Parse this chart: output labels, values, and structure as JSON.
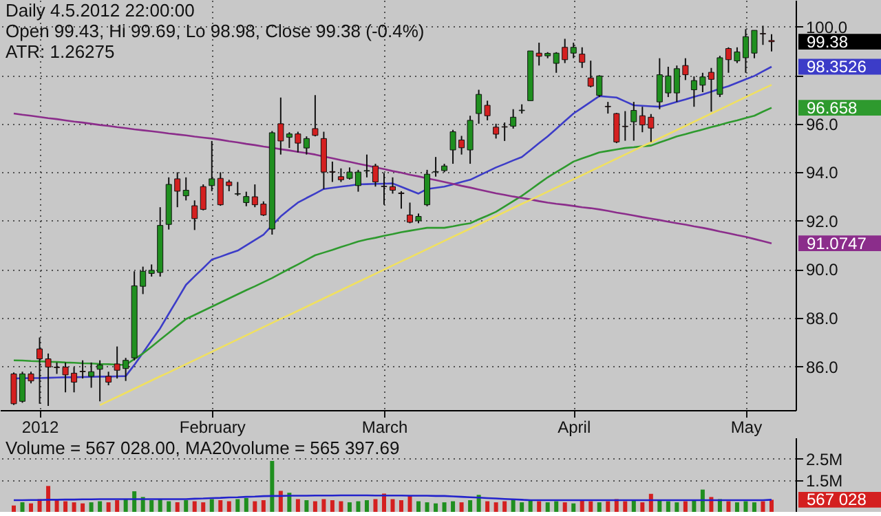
{
  "chart_data": [
    {
      "type": "candlestick",
      "title": "Daily 4.5.2012 22:00:00",
      "subtitle": "Open 99.43, Hi 99.69, Lo 98.98, Close 99.38 (-0.4%)\nATR: 1.26275",
      "annotations": [
        "99.38",
        "98.3526",
        "96.658",
        "91.0747"
      ],
      "categories": [
        null,
        null,
        null,
        "2012",
        null,
        null,
        null,
        null,
        null,
        null,
        null,
        null,
        null,
        null,
        null,
        null,
        null,
        null,
        null,
        null,
        null,
        null,
        null,
        "February",
        null,
        null,
        null,
        null,
        null,
        null,
        null,
        null,
        null,
        null,
        null,
        null,
        null,
        null,
        null,
        null,
        null,
        null,
        null,
        "March",
        null,
        null,
        null,
        null,
        null,
        null,
        null,
        null,
        null,
        null,
        null,
        null,
        null,
        null,
        null,
        null,
        null,
        null,
        null,
        null,
        null,
        "April",
        null,
        null,
        null,
        null,
        null,
        null,
        null,
        null,
        null,
        null,
        null,
        null,
        null,
        null,
        null,
        null,
        null,
        null,
        null,
        "May",
        null,
        null,
        null
      ],
      "ohlc": [
        [
          85.69,
          85.75,
          84.41,
          84.46
        ],
        [
          84.56,
          85.78,
          84.5,
          85.69
        ],
        [
          85.69,
          85.78,
          85.3,
          85.4
        ],
        [
          86.72,
          87.19,
          84.46,
          86.31
        ],
        [
          86.31,
          86.53,
          84.37,
          85.97
        ],
        [
          85.97,
          86.16,
          85.69,
          85.95
        ],
        [
          85.97,
          86.16,
          84.93,
          85.65
        ],
        [
          85.72,
          85.97,
          84.93,
          85.35
        ],
        [
          85.8,
          86.25,
          85.5,
          85.78
        ],
        [
          85.59,
          86.16,
          85.12,
          85.78
        ],
        [
          85.88,
          86.25,
          84.56,
          86.06
        ],
        [
          85.59,
          85.78,
          85.22,
          85.35
        ],
        [
          86.1,
          86.82,
          85.5,
          85.84
        ],
        [
          85.91,
          86.35,
          85.4,
          86.25
        ],
        [
          86.35,
          89.92,
          86.25,
          89.32
        ],
        [
          89.3,
          90.11,
          88.98,
          89.92
        ],
        [
          89.83,
          90.2,
          89.7,
          89.96
        ],
        [
          89.87,
          92.56,
          89.7,
          91.81
        ],
        [
          91.85,
          93.79,
          91.64,
          93.5
        ],
        [
          93.73,
          94.0,
          92.56,
          93.22
        ],
        [
          93.03,
          93.79,
          92.84,
          93.26
        ],
        [
          92.62,
          92.84,
          91.62,
          92.09
        ],
        [
          93.41,
          93.5,
          92.43,
          92.47
        ],
        [
          93.45,
          95.29,
          93.22,
          93.73
        ],
        [
          93.75,
          94.0,
          92.62,
          92.66
        ],
        [
          93.6,
          93.69,
          93.22,
          93.45
        ],
        [
          93.1,
          93.6,
          93.03,
          93.12
        ],
        [
          92.75,
          93.2,
          92.6,
          93.0
        ],
        [
          92.99,
          93.5,
          92.56,
          92.66
        ],
        [
          92.69,
          92.8,
          92.2,
          92.24
        ],
        [
          91.66,
          95.7,
          91.43,
          95.63
        ],
        [
          96.0,
          97.08,
          94.73,
          95.29
        ],
        [
          95.44,
          95.65,
          95.0,
          95.58
        ],
        [
          95.58,
          95.67,
          94.82,
          95.2
        ],
        [
          95.0,
          95.48,
          94.73,
          95.39
        ],
        [
          95.8,
          97.18,
          95.48,
          95.52
        ],
        [
          95.39,
          95.67,
          93.31,
          94.01
        ],
        [
          94.03,
          94.44,
          93.6,
          94.0
        ],
        [
          93.82,
          94.16,
          93.6,
          93.69
        ],
        [
          93.75,
          94.2,
          93.7,
          94.01
        ],
        [
          93.45,
          94.1,
          93.2,
          94.01
        ],
        [
          94.05,
          94.73,
          93.79,
          94.07
        ],
        [
          94.26,
          94.35,
          93.41,
          93.6
        ],
        [
          93.43,
          93.97,
          92.66,
          93.41
        ],
        [
          93.41,
          93.79,
          93.12,
          93.26
        ],
        [
          93.15,
          93.22,
          92.5,
          93.12
        ],
        [
          92.24,
          92.75,
          91.9,
          91.94
        ],
        [
          92.0,
          92.3,
          91.9,
          92.18
        ],
        [
          92.66,
          94.1,
          92.6,
          93.92
        ],
        [
          94.01,
          94.63,
          93.82,
          94.03
        ],
        [
          94.07,
          94.35,
          94.0,
          94.26
        ],
        [
          94.92,
          95.75,
          94.35,
          95.67
        ],
        [
          95.33,
          95.5,
          94.73,
          95.01
        ],
        [
          94.92,
          96.33,
          94.35,
          96.14
        ],
        [
          96.42,
          97.4,
          96.0,
          97.21
        ],
        [
          96.76,
          96.95,
          96.14,
          96.33
        ],
        [
          95.86,
          96.0,
          95.39,
          95.57
        ],
        [
          95.88,
          96.05,
          95.29,
          95.86
        ],
        [
          95.9,
          96.6,
          95.8,
          96.27
        ],
        [
          96.54,
          96.8,
          96.42,
          96.56
        ],
        [
          96.95,
          99.0,
          96.95,
          99.0
        ],
        [
          98.91,
          99.34,
          98.4,
          98.78
        ],
        [
          98.8,
          98.95,
          98.7,
          98.9
        ],
        [
          98.49,
          98.95,
          98.1,
          98.91
        ],
        [
          99.15,
          99.5,
          98.5,
          98.64
        ],
        [
          98.91,
          99.34,
          98.7,
          99.15
        ],
        [
          98.87,
          99.15,
          98.3,
          98.53
        ],
        [
          97.89,
          98.6,
          97.5,
          97.55
        ],
        [
          97.17,
          98.0,
          97.1,
          97.97
        ],
        [
          96.72,
          96.9,
          96.42,
          96.7
        ],
        [
          96.42,
          96.45,
          95.2,
          95.25
        ],
        [
          95.9,
          96.52,
          95.3,
          95.88
        ],
        [
          96.08,
          96.9,
          95.3,
          96.55
        ],
        [
          96.33,
          96.7,
          95.65,
          95.95
        ],
        [
          96.27,
          96.4,
          95.25,
          95.82
        ],
        [
          96.9,
          98.7,
          96.6,
          98.02
        ],
        [
          97.27,
          98.35,
          97.1,
          97.97
        ],
        [
          97.27,
          98.4,
          96.9,
          98.27
        ],
        [
          98.4,
          98.7,
          97.8,
          98.02
        ],
        [
          97.4,
          97.95,
          96.7,
          97.78
        ],
        [
          97.59,
          98.1,
          97.3,
          97.93
        ],
        [
          98.12,
          98.3,
          96.5,
          97.83
        ],
        [
          97.21,
          98.8,
          97.1,
          98.72
        ],
        [
          99.1,
          99.15,
          98.1,
          98.64
        ],
        [
          98.59,
          99.15,
          98.5,
          98.96
        ],
        [
          98.72,
          99.9,
          98.1,
          99.59
        ],
        [
          98.91,
          99.85,
          98.7,
          99.85
        ],
        [
          99.72,
          100.04,
          99.25,
          99.7
        ],
        [
          99.43,
          99.69,
          98.98,
          99.38
        ]
      ],
      "colors": [
        "#d42020",
        "#1f8f1f",
        "#d42020",
        "#d42020",
        "#d42020",
        "#d42020",
        "#d42020",
        "#d42020",
        "#d42020",
        "#1f8f1f",
        "#1f8f1f",
        "#d42020",
        "#d42020",
        "#1f8f1f",
        "#1f8f1f",
        "#1f8f1f",
        "#1f8f1f",
        "#1f8f1f",
        "#1f8f1f",
        "#d42020",
        "#1f8f1f",
        "#d42020",
        "#d42020",
        "#1f8f1f",
        "#d42020",
        "#d42020",
        "#1f8f1f",
        "#1f8f1f",
        "#d42020",
        "#d42020",
        "#1f8f1f",
        "#d42020",
        "#1f8f1f",
        "#d42020",
        "#1f8f1f",
        "#d42020",
        "#d42020",
        "#d42020",
        "#d42020",
        "#1f8f1f",
        "#1f8f1f",
        "#1f8f1f",
        "#d42020",
        "#d42020",
        "#d42020",
        "#d42020",
        "#d42020",
        "#1f8f1f",
        "#1f8f1f",
        "#1f8f1f",
        "#1f8f1f",
        "#1f8f1f",
        "#d42020",
        "#1f8f1f",
        "#1f8f1f",
        "#d42020",
        "#d42020",
        "#d42020",
        "#1f8f1f",
        "#1f8f1f",
        "#1f8f1f",
        "#d42020",
        "#1f8f1f",
        "#1f8f1f",
        "#d42020",
        "#1f8f1f",
        "#d42020",
        "#d42020",
        "#1f8f1f",
        "#d42020",
        "#d42020",
        "#d42020",
        "#1f8f1f",
        "#d42020",
        "#d42020",
        "#1f8f1f",
        "#1f8f1f",
        "#1f8f1f",
        "#d42020",
        "#1f8f1f",
        "#1f8f1f",
        "#d42020",
        "#1f8f1f",
        "#d42020",
        "#1f8f1f",
        "#1f8f1f",
        "#1f8f1f",
        "#d42020",
        "#d42020"
      ],
      "series": [
        {
          "type": "line",
          "color": "#3c3cc8",
          "values": [
            85.5,
            85.51,
            85.52,
            85.52,
            85.53,
            85.54,
            85.55,
            85.55,
            85.56,
            85.57,
            85.58,
            85.58,
            85.59,
            85.6,
            86.06,
            86.56,
            87.07,
            87.57,
            88.17,
            88.76,
            89.36,
            89.71,
            90.05,
            90.4,
            90.52,
            90.65,
            90.77,
            90.99,
            91.21,
            91.43,
            91.81,
            92.18,
            92.47,
            92.75,
            92.94,
            93.12,
            93.31,
            93.36,
            93.41,
            93.45,
            93.5,
            93.51,
            93.52,
            93.53,
            93.54,
            93.4,
            93.26,
            93.12,
            93.31,
            93.36,
            93.41,
            93.5,
            93.6,
            93.69,
            93.86,
            94.03,
            94.2,
            94.34,
            94.49,
            94.63,
            94.91,
            95.2,
            95.48,
            95.79,
            96.11,
            96.42,
            96.66,
            96.9,
            97.14,
            97.11,
            97.08,
            96.92,
            96.76,
            96.74,
            96.72,
            96.7,
            96.8,
            96.9,
            97.0,
            97.11,
            97.21,
            97.32,
            97.44,
            97.55,
            97.69,
            97.83,
            97.97,
            98.16,
            98.35
          ]
        },
        {
          "type": "line",
          "color": "#2e9a2e",
          "values": [
            86.25,
            86.24,
            86.22,
            86.21,
            86.19,
            86.18,
            86.16,
            86.15,
            86.13,
            86.12,
            86.1,
            86.09,
            86.07,
            86.06,
            86.3,
            86.53,
            86.81,
            87.1,
            87.38,
            87.67,
            87.95,
            88.12,
            88.29,
            88.46,
            88.63,
            88.8,
            88.97,
            89.14,
            89.3,
            89.47,
            89.64,
            89.83,
            90.02,
            90.2,
            90.39,
            90.58,
            90.69,
            90.8,
            90.92,
            91.03,
            91.15,
            91.23,
            91.3,
            91.38,
            91.45,
            91.53,
            91.59,
            91.65,
            91.71,
            91.71,
            91.71,
            91.77,
            91.84,
            91.9,
            92.06,
            92.21,
            92.37,
            92.59,
            92.81,
            93.03,
            93.28,
            93.54,
            93.79,
            94.01,
            94.22,
            94.44,
            94.57,
            94.69,
            94.82,
            94.88,
            94.94,
            95.0,
            95.03,
            95.07,
            95.1,
            95.23,
            95.35,
            95.48,
            95.57,
            95.67,
            95.76,
            95.86,
            95.95,
            96.05,
            96.14,
            96.24,
            96.33,
            96.5,
            96.66
          ]
        },
        {
          "type": "line",
          "color": "#8b2d8b",
          "values": [
            96.42,
            96.37,
            96.33,
            96.28,
            96.23,
            96.19,
            96.14,
            96.09,
            96.05,
            96.0,
            95.95,
            95.91,
            95.86,
            95.82,
            95.77,
            95.73,
            95.69,
            95.65,
            95.6,
            95.56,
            95.52,
            95.47,
            95.43,
            95.39,
            95.34,
            95.28,
            95.23,
            95.17,
            95.12,
            95.06,
            95.01,
            94.95,
            94.9,
            94.84,
            94.79,
            94.73,
            94.65,
            94.58,
            94.5,
            94.43,
            94.35,
            94.28,
            94.2,
            94.13,
            94.05,
            93.98,
            93.9,
            93.83,
            93.75,
            93.68,
            93.6,
            93.52,
            93.44,
            93.37,
            93.29,
            93.21,
            93.13,
            93.07,
            93.0,
            92.94,
            92.88,
            92.81,
            92.75,
            92.7,
            92.66,
            92.61,
            92.56,
            92.52,
            92.47,
            92.41,
            92.34,
            92.28,
            92.22,
            92.15,
            92.09,
            92.03,
            91.96,
            91.9,
            91.84,
            91.77,
            91.71,
            91.64,
            91.56,
            91.49,
            91.41,
            91.34,
            91.25,
            91.16,
            91.07
          ]
        },
        {
          "type": "line",
          "color": "#f0e060",
          "values": [
            null,
            null,
            null,
            null,
            null,
            null,
            null,
            null,
            null,
            null,
            84.4,
            84.57,
            84.74,
            84.91,
            85.08,
            85.25,
            85.42,
            85.59,
            85.75,
            85.92,
            86.09,
            86.26,
            86.43,
            86.6,
            86.77,
            86.94,
            87.11,
            87.28,
            87.45,
            87.62,
            87.79,
            87.96,
            88.12,
            88.29,
            88.46,
            88.63,
            88.8,
            88.97,
            89.14,
            89.31,
            89.48,
            89.65,
            89.82,
            89.99,
            90.16,
            90.33,
            90.49,
            90.66,
            90.83,
            91.0,
            91.17,
            91.34,
            91.51,
            91.68,
            91.85,
            92.02,
            92.19,
            92.36,
            92.53,
            92.7,
            92.86,
            93.03,
            93.2,
            93.37,
            93.54,
            93.71,
            93.88,
            94.05,
            94.22,
            94.39,
            94.56,
            94.73,
            94.9,
            95.07,
            95.23,
            95.4,
            95.57,
            95.74,
            95.91,
            96.08,
            96.25,
            96.42,
            96.59,
            96.76,
            96.93,
            97.1,
            97.27,
            97.44,
            97.6
          ]
        }
      ],
      "ylim": [
        84.2,
        101.1
      ],
      "yticks": [
        {
          "value": 86,
          "label": "86.0"
        },
        {
          "value": 88,
          "label": "88.0"
        },
        {
          "value": 90,
          "label": "90.0"
        },
        {
          "value": 92,
          "label": "92.0"
        },
        {
          "value": 94,
          "label": "94.0"
        },
        {
          "value": 96,
          "label": "96.0"
        },
        {
          "value": 98,
          "label": null
        },
        {
          "value": 100,
          "label": "100.0"
        }
      ],
      "grid": true
    },
    {
      "type": "bar",
      "title": "Volume = 567 028.00, MA20volume = 565 397.69",
      "annotations": [
        "567 028"
      ],
      "categories": [
        null,
        null,
        null,
        null,
        null,
        null,
        null,
        null,
        null,
        null,
        null,
        null,
        null,
        null,
        null,
        null,
        null,
        null,
        null,
        null,
        null,
        null,
        null,
        null,
        null,
        null,
        null,
        null,
        null,
        null,
        null,
        null,
        null,
        null,
        null,
        null,
        null,
        null,
        null,
        null,
        null,
        null,
        null,
        null,
        null,
        null,
        null,
        null,
        null,
        null,
        null,
        null,
        null,
        null,
        null,
        null,
        null,
        null,
        null,
        null,
        null,
        null,
        null,
        null,
        null,
        null,
        null,
        null,
        null,
        null,
        null,
        null,
        null,
        null,
        null,
        null,
        null,
        null,
        null,
        null,
        null,
        null,
        null,
        null,
        null,
        null,
        null,
        null,
        null
      ],
      "series": [
        {
          "type": "bar",
          "colors": [
            "#d42020",
            "#1f8f1f",
            "#d42020",
            "#d42020",
            "#d42020",
            "#d42020",
            "#d42020",
            "#d42020",
            "#d42020",
            "#1f8f1f",
            "#1f8f1f",
            "#d42020",
            "#d42020",
            "#1f8f1f",
            "#1f8f1f",
            "#1f8f1f",
            "#1f8f1f",
            "#1f8f1f",
            "#1f8f1f",
            "#d42020",
            "#1f8f1f",
            "#d42020",
            "#d42020",
            "#1f8f1f",
            "#d42020",
            "#d42020",
            "#1f8f1f",
            "#1f8f1f",
            "#d42020",
            "#d42020",
            "#1f8f1f",
            "#d42020",
            "#1f8f1f",
            "#d42020",
            "#1f8f1f",
            "#d42020",
            "#d42020",
            "#d42020",
            "#d42020",
            "#1f8f1f",
            "#1f8f1f",
            "#1f8f1f",
            "#d42020",
            "#d42020",
            "#d42020",
            "#d42020",
            "#d42020",
            "#1f8f1f",
            "#1f8f1f",
            "#1f8f1f",
            "#1f8f1f",
            "#1f8f1f",
            "#d42020",
            "#1f8f1f",
            "#1f8f1f",
            "#d42020",
            "#d42020",
            "#d42020",
            "#1f8f1f",
            "#1f8f1f",
            "#1f8f1f",
            "#d42020",
            "#1f8f1f",
            "#1f8f1f",
            "#d42020",
            "#1f8f1f",
            "#d42020",
            "#d42020",
            "#1f8f1f",
            "#d42020",
            "#d42020",
            "#d42020",
            "#1f8f1f",
            "#d42020",
            "#d42020",
            "#1f8f1f",
            "#1f8f1f",
            "#1f8f1f",
            "#d42020",
            "#1f8f1f",
            "#1f8f1f",
            "#d42020",
            "#1f8f1f",
            "#d42020",
            "#1f8f1f",
            "#1f8f1f",
            "#1f8f1f",
            "#d42020",
            "#d42020"
          ],
          "values": [
            0.3,
            0.45,
            0.4,
            0.6,
            1.22,
            0.55,
            0.5,
            0.45,
            0.4,
            0.45,
            0.5,
            0.45,
            0.55,
            0.6,
            0.97,
            0.7,
            0.55,
            0.6,
            0.5,
            0.45,
            0.55,
            0.5,
            0.45,
            0.6,
            0.55,
            0.5,
            0.6,
            0.65,
            0.5,
            0.55,
            2.4,
            0.99,
            0.9,
            0.6,
            0.55,
            0.5,
            0.6,
            0.55,
            0.5,
            0.45,
            0.5,
            0.55,
            0.6,
            0.86,
            0.6,
            0.55,
            0.77,
            0.5,
            0.45,
            0.4,
            0.45,
            0.5,
            0.45,
            0.55,
            0.8,
            0.5,
            0.45,
            0.5,
            0.6,
            0.45,
            0.55,
            0.5,
            0.45,
            0.5,
            0.45,
            0.4,
            0.55,
            0.5,
            0.45,
            0.5,
            0.6,
            0.5,
            0.55,
            0.45,
            0.85,
            0.55,
            0.5,
            0.45,
            0.5,
            0.55,
            1.05,
            0.7,
            0.6,
            0.5,
            0.45,
            0.5,
            0.45,
            0.5,
            0.57
          ]
        },
        {
          "type": "line",
          "color": "#2222cc",
          "values": [
            0.55,
            0.55,
            0.56,
            0.56,
            0.57,
            0.57,
            0.58,
            0.58,
            0.59,
            0.59,
            0.6,
            0.6,
            0.6,
            0.6,
            0.6,
            0.6,
            0.6,
            0.6,
            0.6,
            0.6,
            0.6,
            0.62,
            0.63,
            0.65,
            0.66,
            0.68,
            0.69,
            0.71,
            0.72,
            0.74,
            0.75,
            0.75,
            0.76,
            0.76,
            0.76,
            0.77,
            0.77,
            0.77,
            0.78,
            0.78,
            0.78,
            0.78,
            0.77,
            0.77,
            0.77,
            0.77,
            0.76,
            0.76,
            0.76,
            0.75,
            0.75,
            0.73,
            0.71,
            0.69,
            0.67,
            0.65,
            0.63,
            0.61,
            0.59,
            0.57,
            0.55,
            0.55,
            0.55,
            0.55,
            0.55,
            0.55,
            0.55,
            0.55,
            0.55,
            0.55,
            0.55,
            0.55,
            0.55,
            0.55,
            0.55,
            0.55,
            0.55,
            0.55,
            0.55,
            0.55,
            0.55,
            0.55,
            0.55,
            0.55,
            0.55,
            0.55,
            0.55,
            0.55,
            0.57
          ]
        }
      ],
      "ylim": [
        0,
        3.5
      ],
      "yticks": [
        {
          "value": 1.5,
          "label": "1.5M"
        },
        {
          "value": 2.5,
          "label": "2.5M"
        }
      ],
      "grid": "y",
      "tick_labels": "y"
    }
  ]
}
